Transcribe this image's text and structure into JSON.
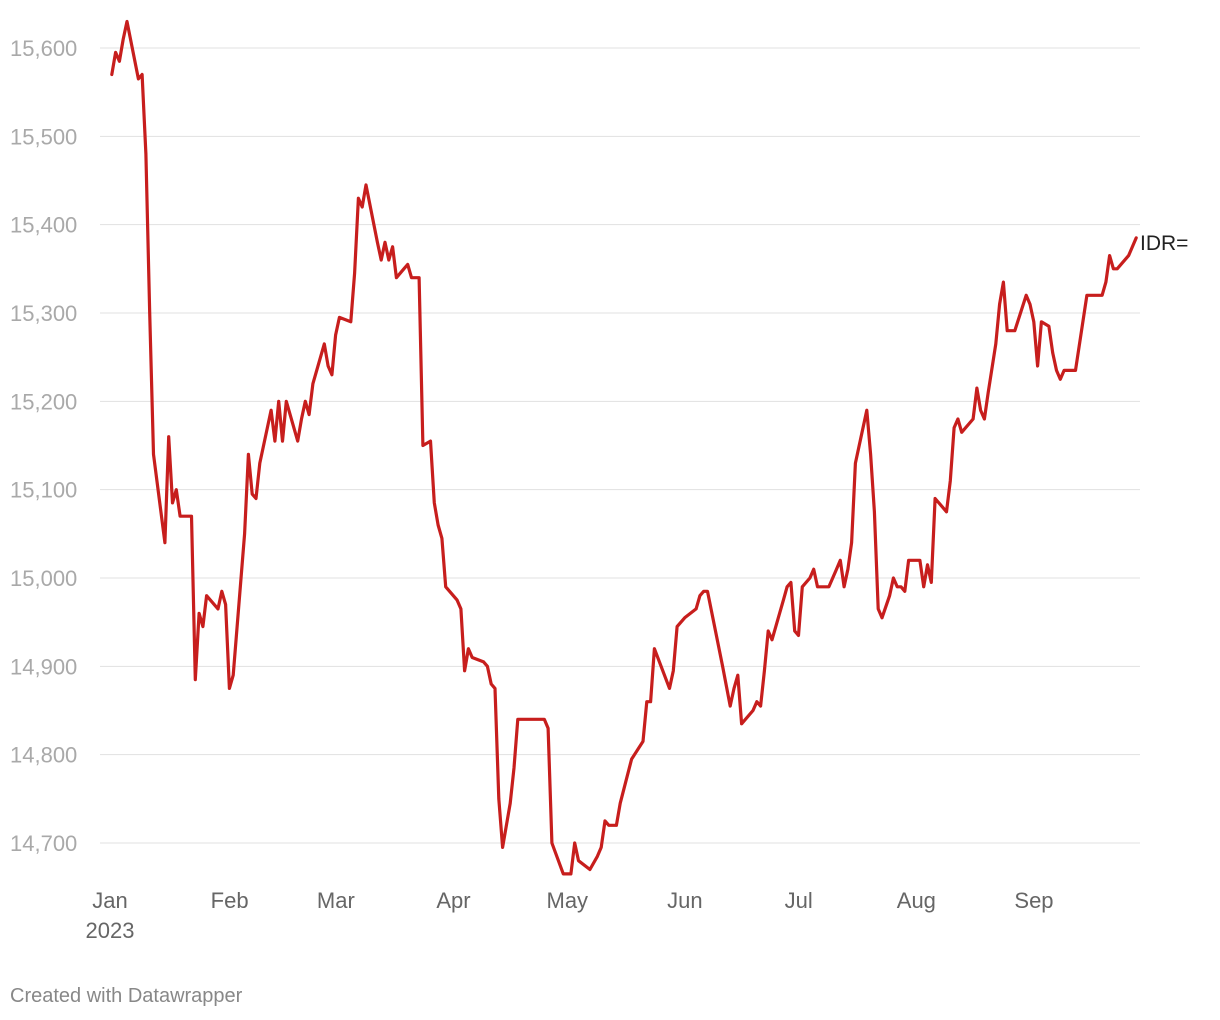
{
  "chart_data": {
    "type": "line",
    "title": "",
    "xlabel": "",
    "ylabel": "",
    "ylim": [
      14665,
      15630
    ],
    "y_ticks": [
      14700,
      14800,
      14900,
      15000,
      15100,
      15200,
      15300,
      15400,
      15500,
      15600
    ],
    "y_tick_labels": [
      "14,700",
      "14,800",
      "14,900",
      "15,000",
      "15,100",
      "15,200",
      "15,300",
      "15,400",
      "15,500",
      "15,600"
    ],
    "x_range": [
      "2023-01-01",
      "2023-09-30"
    ],
    "x_ticks": [
      {
        "date": "2023-01-01",
        "label": "Jan",
        "sublabel": "2023"
      },
      {
        "date": "2023-02-01",
        "label": "Feb",
        "sublabel": ""
      },
      {
        "date": "2023-03-01",
        "label": "Mar",
        "sublabel": ""
      },
      {
        "date": "2023-04-01",
        "label": "Apr",
        "sublabel": ""
      },
      {
        "date": "2023-05-01",
        "label": "May",
        "sublabel": ""
      },
      {
        "date": "2023-06-01",
        "label": "Jun",
        "sublabel": ""
      },
      {
        "date": "2023-07-01",
        "label": "Jul",
        "sublabel": ""
      },
      {
        "date": "2023-08-01",
        "label": "Aug",
        "sublabel": ""
      },
      {
        "date": "2023-09-01",
        "label": "Sep",
        "sublabel": ""
      }
    ],
    "grid": true,
    "series": [
      {
        "name": "IDR=",
        "color": "#c71e1d",
        "points": [
          [
            "2023-01-02",
            15570
          ],
          [
            "2023-01-03",
            15595
          ],
          [
            "2023-01-04",
            15585
          ],
          [
            "2023-01-05",
            15610
          ],
          [
            "2023-01-06",
            15630
          ],
          [
            "2023-01-09",
            15565
          ],
          [
            "2023-01-10",
            15570
          ],
          [
            "2023-01-11",
            15480
          ],
          [
            "2023-01-12",
            15300
          ],
          [
            "2023-01-13",
            15140
          ],
          [
            "2023-01-16",
            15040
          ],
          [
            "2023-01-17",
            15160
          ],
          [
            "2023-01-18",
            15085
          ],
          [
            "2023-01-19",
            15100
          ],
          [
            "2023-01-20",
            15070
          ],
          [
            "2023-01-23",
            15070
          ],
          [
            "2023-01-24",
            14885
          ],
          [
            "2023-01-25",
            14960
          ],
          [
            "2023-01-26",
            14945
          ],
          [
            "2023-01-27",
            14980
          ],
          [
            "2023-01-30",
            14965
          ],
          [
            "2023-01-31",
            14985
          ],
          [
            "2023-02-01",
            14970
          ],
          [
            "2023-02-02",
            14875
          ],
          [
            "2023-02-03",
            14890
          ],
          [
            "2023-02-06",
            15050
          ],
          [
            "2023-02-07",
            15140
          ],
          [
            "2023-02-08",
            15095
          ],
          [
            "2023-02-09",
            15090
          ],
          [
            "2023-02-10",
            15130
          ],
          [
            "2023-02-13",
            15190
          ],
          [
            "2023-02-14",
            15155
          ],
          [
            "2023-02-15",
            15200
          ],
          [
            "2023-02-16",
            15155
          ],
          [
            "2023-02-17",
            15200
          ],
          [
            "2023-02-20",
            15155
          ],
          [
            "2023-02-21",
            15180
          ],
          [
            "2023-02-22",
            15200
          ],
          [
            "2023-02-23",
            15185
          ],
          [
            "2023-02-24",
            15220
          ],
          [
            "2023-02-27",
            15265
          ],
          [
            "2023-02-28",
            15240
          ],
          [
            "2023-03-01",
            15230
          ],
          [
            "2023-03-02",
            15275
          ],
          [
            "2023-03-03",
            15295
          ],
          [
            "2023-03-06",
            15290
          ],
          [
            "2023-03-07",
            15345
          ],
          [
            "2023-03-08",
            15430
          ],
          [
            "2023-03-09",
            15420
          ],
          [
            "2023-03-10",
            15445
          ],
          [
            "2023-03-13",
            15380
          ],
          [
            "2023-03-14",
            15360
          ],
          [
            "2023-03-15",
            15380
          ],
          [
            "2023-03-16",
            15360
          ],
          [
            "2023-03-17",
            15375
          ],
          [
            "2023-03-18",
            15340
          ],
          [
            "2023-03-20",
            15350
          ],
          [
            "2023-03-21",
            15355
          ],
          [
            "2023-03-22",
            15340
          ],
          [
            "2023-03-24",
            15340
          ],
          [
            "2023-03-25",
            15150
          ],
          [
            "2023-03-27",
            15155
          ],
          [
            "2023-03-28",
            15085
          ],
          [
            "2023-03-29",
            15060
          ],
          [
            "2023-03-30",
            15045
          ],
          [
            "2023-03-31",
            14990
          ],
          [
            "2023-04-03",
            14975
          ],
          [
            "2023-04-04",
            14965
          ],
          [
            "2023-04-05",
            14895
          ],
          [
            "2023-04-06",
            14920
          ],
          [
            "2023-04-07",
            14910
          ],
          [
            "2023-04-10",
            14905
          ],
          [
            "2023-04-11",
            14900
          ],
          [
            "2023-04-12",
            14880
          ],
          [
            "2023-04-13",
            14875
          ],
          [
            "2023-04-14",
            14750
          ],
          [
            "2023-04-15",
            14695
          ],
          [
            "2023-04-17",
            14745
          ],
          [
            "2023-04-18",
            14785
          ],
          [
            "2023-04-19",
            14840
          ],
          [
            "2023-04-26",
            14840
          ],
          [
            "2023-04-27",
            14830
          ],
          [
            "2023-04-28",
            14700
          ],
          [
            "2023-05-01",
            14665
          ],
          [
            "2023-05-02",
            14665
          ],
          [
            "2023-05-03",
            14665
          ],
          [
            "2023-05-04",
            14700
          ],
          [
            "2023-05-05",
            14680
          ],
          [
            "2023-05-08",
            14670
          ],
          [
            "2023-05-10",
            14685
          ],
          [
            "2023-05-11",
            14695
          ],
          [
            "2023-05-12",
            14725
          ],
          [
            "2023-05-13",
            14720
          ],
          [
            "2023-05-15",
            14720
          ],
          [
            "2023-05-16",
            14745
          ],
          [
            "2023-05-19",
            14795
          ],
          [
            "2023-05-22",
            14815
          ],
          [
            "2023-05-23",
            14860
          ],
          [
            "2023-05-24",
            14860
          ],
          [
            "2023-05-25",
            14920
          ],
          [
            "2023-05-29",
            14875
          ],
          [
            "2023-05-30",
            14895
          ],
          [
            "2023-05-31",
            14945
          ],
          [
            "2023-06-02",
            14955
          ],
          [
            "2023-06-05",
            14965
          ],
          [
            "2023-06-06",
            14980
          ],
          [
            "2023-06-07",
            14985
          ],
          [
            "2023-06-08",
            14985
          ],
          [
            "2023-06-12",
            14900
          ],
          [
            "2023-06-14",
            14855
          ],
          [
            "2023-06-15",
            14875
          ],
          [
            "2023-06-16",
            14890
          ],
          [
            "2023-06-17",
            14835
          ],
          [
            "2023-06-20",
            14850
          ],
          [
            "2023-06-21",
            14860
          ],
          [
            "2023-06-22",
            14855
          ],
          [
            "2023-06-23",
            14895
          ],
          [
            "2023-06-24",
            14940
          ],
          [
            "2023-06-25",
            14930
          ],
          [
            "2023-06-26",
            14945
          ],
          [
            "2023-06-28",
            14975
          ],
          [
            "2023-06-29",
            14990
          ],
          [
            "2023-06-30",
            14995
          ],
          [
            "2023-07-01",
            14940
          ],
          [
            "2023-07-02",
            14935
          ],
          [
            "2023-07-03",
            14990
          ],
          [
            "2023-07-05",
            15000
          ],
          [
            "2023-07-06",
            15010
          ],
          [
            "2023-07-07",
            14990
          ],
          [
            "2023-07-10",
            14990
          ],
          [
            "2023-07-12",
            15010
          ],
          [
            "2023-07-13",
            15020
          ],
          [
            "2023-07-14",
            14990
          ],
          [
            "2023-07-15",
            15010
          ],
          [
            "2023-07-16",
            15040
          ],
          [
            "2023-07-17",
            15130
          ],
          [
            "2023-07-18",
            15150
          ],
          [
            "2023-07-20",
            15190
          ],
          [
            "2023-07-21",
            15140
          ],
          [
            "2023-07-22",
            15075
          ],
          [
            "2023-07-23",
            14965
          ],
          [
            "2023-07-24",
            14955
          ],
          [
            "2023-07-26",
            14980
          ],
          [
            "2023-07-27",
            15000
          ],
          [
            "2023-07-28",
            14990
          ],
          [
            "2023-07-29",
            14990
          ],
          [
            "2023-07-30",
            14985
          ],
          [
            "2023-07-31",
            15020
          ],
          [
            "2023-08-03",
            15020
          ],
          [
            "2023-08-04",
            14990
          ],
          [
            "2023-08-05",
            15015
          ],
          [
            "2023-08-06",
            14995
          ],
          [
            "2023-08-07",
            15090
          ],
          [
            "2023-08-09",
            15080
          ],
          [
            "2023-08-10",
            15075
          ],
          [
            "2023-08-11",
            15110
          ],
          [
            "2023-08-12",
            15170
          ],
          [
            "2023-08-13",
            15180
          ],
          [
            "2023-08-14",
            15165
          ],
          [
            "2023-08-17",
            15180
          ],
          [
            "2023-08-18",
            15215
          ],
          [
            "2023-08-19",
            15190
          ],
          [
            "2023-08-20",
            15180
          ],
          [
            "2023-08-21",
            15210
          ],
          [
            "2023-08-23",
            15265
          ],
          [
            "2023-08-24",
            15310
          ],
          [
            "2023-08-25",
            15335
          ],
          [
            "2023-08-26",
            15280
          ],
          [
            "2023-08-28",
            15280
          ],
          [
            "2023-08-31",
            15320
          ],
          [
            "2023-09-01",
            15310
          ],
          [
            "2023-09-02",
            15290
          ],
          [
            "2023-09-03",
            15240
          ],
          [
            "2023-09-04",
            15290
          ],
          [
            "2023-09-06",
            15285
          ],
          [
            "2023-09-07",
            15255
          ],
          [
            "2023-09-08",
            15235
          ],
          [
            "2023-09-09",
            15225
          ],
          [
            "2023-09-10",
            15235
          ],
          [
            "2023-09-13",
            15235
          ],
          [
            "2023-09-16",
            15320
          ],
          [
            "2023-09-20",
            15320
          ],
          [
            "2023-09-21",
            15335
          ],
          [
            "2023-09-22",
            15365
          ],
          [
            "2023-09-23",
            15350
          ],
          [
            "2023-09-24",
            15350
          ],
          [
            "2023-09-27",
            15365
          ],
          [
            "2023-09-28",
            15375
          ],
          [
            "2023-09-29",
            15385
          ]
        ]
      }
    ]
  },
  "footer": {
    "credit": "Created with Datawrapper"
  }
}
